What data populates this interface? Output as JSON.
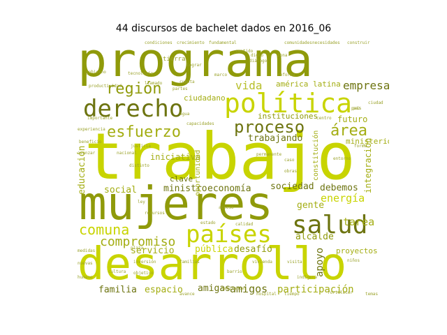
{
  "title": "44 discursos de bachelet dados en 2016_06",
  "words": {
    "programa": "programa",
    "trabajo": "trabajo",
    "mujeres": "mujeres",
    "desarrollo": "desarrollo",
    "derecho": "derecho",
    "politica": "política",
    "region": "región",
    "esfuerzo": "esfuerzo",
    "proceso": "proceso",
    "area": "área",
    "salud": "salud",
    "paises": "países",
    "comuna": "comuna",
    "compromiso": "compromiso",
    "vida": "vida",
    "empresa": "empresa",
    "america_latina": "américa latina",
    "ciudadano": "ciudadano",
    "instituciones": "instituciones",
    "futuro": "futuro",
    "trabajando": "trabajando",
    "ministerio": "ministerio",
    "educacion": "educación",
    "iniciativa": "iniciativa",
    "clave": "clave",
    "social": "social",
    "ministro": "ministro",
    "economia": "economía",
    "sociedad": "sociedad",
    "debemos": "debemos",
    "energia": "energía",
    "gente": "gente",
    "tarea": "tarea",
    "integracion": "integración",
    "servicio": "servicio",
    "publica": "pública",
    "desafio": "desafío",
    "alcalde": "alcalde",
    "apoyo": "apoyo",
    "proyectos": "proyectos",
    "familia": "familia",
    "espacio": "espacio",
    "amigas": "amigas",
    "amigos": "amigos",
    "participacion": "participación",
    "constitucion": "constitución",
    "oportunidad": "oportunidad",
    "plaza": "plaza",
    "barrio": "barrio",
    "objetivo": "objetivo",
    "capacidades": "capacidades",
    "permanente": "permanente",
    "distinto": "distinto",
    "tierra": "tierra",
    "lograr": "lograr",
    "crecimiento": "crecimiento",
    "condiciones": "condiciones",
    "comunidades": "comunidades",
    "necesidades": "necesidades",
    "construir": "construir",
    "fundamental": "fundamental",
    "tecnologia": "tecnología",
    "gobierno": "gobierno",
    "dialogo": "diálogo",
    "cuenta": "cuenta",
    "cada": "cada",
    "digno": "digno",
    "marco": "marco",
    "reforma": "reforma",
    "caso": "caso",
    "estado": "estado",
    "ninos": "niños",
    "pais": "país",
    "habitantes": "habitantes",
    "indigena": "indígena",
    "fortalecer": "fortalecer",
    "calidad": "calidad",
    "acceso": "acceso",
    "familias": "familias",
    "relacion": "relación",
    "pasos": "pasos",
    "experiencia": "experiencia",
    "beneficio": "beneficio",
    "productividad": "productividad",
    "medidas": "medidas",
    "paz": "paz",
    "entorno": "entorno",
    "visita": "visita",
    "nuevas": "nuevas",
    "vivienda": "vivienda",
    "cultura": "cultura",
    "justicia": "justicia",
    "avance": "avance",
    "acción": "acción",
    "recursos": "recursos",
    "ley": "ley",
    "obras": "obras",
    "inversion": "inversión",
    "centro": "centro",
    "forma": "forma",
    "hospital": "hospital",
    "nacional": "nacional",
    "agua": "agua",
    "zona": "zona",
    "region2": "regional",
    "sentido": "sentido",
    "avanzar": "avanzar",
    "llamado": "llamado",
    "partes": "partes",
    "ciudad": "ciudad",
    "importante": "importante",
    "humano": "humano",
    "ser": "ser",
    "tiempo": "tiempo",
    "temas": "temas"
  }
}
